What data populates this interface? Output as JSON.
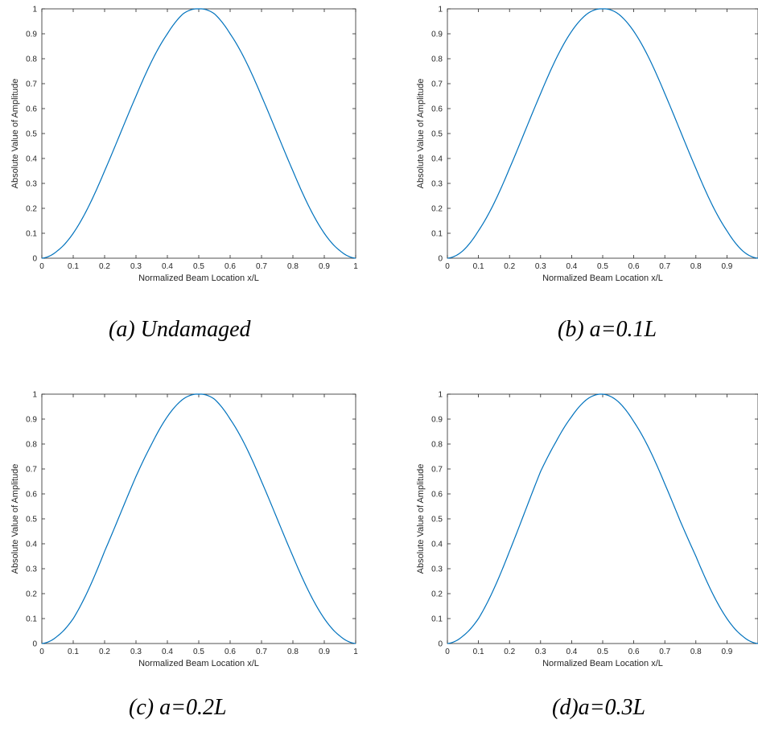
{
  "chart_data": [
    {
      "type": "line",
      "caption": "(a) Undamaged",
      "xlabel": "Normalized Beam Location x/L",
      "ylabel": "Absolute Value of Amplitude",
      "xlim": [
        0,
        1
      ],
      "ylim": [
        0,
        1
      ],
      "xticks": [
        "0",
        "0.1",
        "0.2",
        "0.3",
        "0.4",
        "0.5",
        "0.6",
        "0.7",
        "0.8",
        "0.9",
        "1"
      ],
      "yticks": [
        "0",
        "0.1",
        "0.2",
        "0.3",
        "0.4",
        "0.5",
        "0.6",
        "0.7",
        "0.8",
        "0.9",
        "1"
      ],
      "grid": false,
      "series": [
        {
          "color": "#0072BD",
          "x": [
            0,
            0.05,
            0.1,
            0.15,
            0.2,
            0.25,
            0.3,
            0.35,
            0.4,
            0.45,
            0.5,
            0.55,
            0.6,
            0.65,
            0.7,
            0.75,
            0.8,
            0.85,
            0.9,
            0.95,
            1
          ],
          "y": [
            0,
            0.03,
            0.1,
            0.21,
            0.35,
            0.5,
            0.65,
            0.79,
            0.9,
            0.98,
            1,
            0.98,
            0.9,
            0.79,
            0.65,
            0.5,
            0.35,
            0.21,
            0.1,
            0.03,
            0
          ]
        }
      ]
    },
    {
      "type": "line",
      "caption": "(b) a=0.1L",
      "xlabel": "Normalized Beam Location x/L",
      "ylabel": "Absolute Value of Amplitude",
      "xlim": [
        0,
        1
      ],
      "ylim": [
        0,
        1
      ],
      "xticks": [
        "0",
        "0.1",
        "0.2",
        "0.3",
        "0.4",
        "0.5",
        "0.6",
        "0.7",
        "0.8",
        "0.9"
      ],
      "yticks": [
        "0",
        "0.1",
        "0.2",
        "0.3",
        "0.4",
        "0.5",
        "0.6",
        "0.7",
        "0.8",
        "0.9",
        "1"
      ],
      "grid": false,
      "series": [
        {
          "color": "#0072BD",
          "x": [
            0,
            0.05,
            0.1,
            0.15,
            0.2,
            0.25,
            0.3,
            0.35,
            0.4,
            0.45,
            0.5,
            0.55,
            0.6,
            0.65,
            0.7,
            0.75,
            0.8,
            0.85,
            0.9,
            0.95,
            1
          ],
          "y": [
            0,
            0.03,
            0.11,
            0.22,
            0.36,
            0.51,
            0.66,
            0.8,
            0.91,
            0.98,
            1,
            0.98,
            0.91,
            0.8,
            0.66,
            0.51,
            0.36,
            0.22,
            0.11,
            0.03,
            0
          ]
        }
      ]
    },
    {
      "type": "line",
      "caption": "(c) a=0.2L",
      "xlabel": "Normalized Beam Location x/L",
      "ylabel": "Absolute Value of Amplitude",
      "xlim": [
        0,
        1
      ],
      "ylim": [
        0,
        1
      ],
      "xticks": [
        "0",
        "0.1",
        "0.2",
        "0.3",
        "0.4",
        "0.5",
        "0.6",
        "0.7",
        "0.8",
        "0.9",
        "1"
      ],
      "yticks": [
        "0",
        "0.1",
        "0.2",
        "0.3",
        "0.4",
        "0.5",
        "0.6",
        "0.7",
        "0.8",
        "0.9",
        "1"
      ],
      "grid": false,
      "series": [
        {
          "color": "#0072BD",
          "x": [
            0,
            0.05,
            0.1,
            0.15,
            0.2,
            0.25,
            0.3,
            0.35,
            0.4,
            0.45,
            0.5,
            0.55,
            0.6,
            0.65,
            0.7,
            0.75,
            0.8,
            0.85,
            0.9,
            0.95,
            1
          ],
          "y": [
            0,
            0.03,
            0.1,
            0.22,
            0.37,
            0.52,
            0.67,
            0.8,
            0.91,
            0.98,
            1,
            0.98,
            0.9,
            0.79,
            0.65,
            0.5,
            0.35,
            0.21,
            0.1,
            0.03,
            0
          ]
        }
      ]
    },
    {
      "type": "line",
      "caption": "(d)a=0.3L",
      "xlabel": "Normalized Beam Location x/L",
      "ylabel": "Absolute Value of Amplitude",
      "xlim": [
        0,
        1
      ],
      "ylim": [
        0,
        1
      ],
      "xticks": [
        "0",
        "0.1",
        "0.2",
        "0.3",
        "0.4",
        "0.5",
        "0.6",
        "0.7",
        "0.8",
        "0.9"
      ],
      "yticks": [
        "0",
        "0.1",
        "0.2",
        "0.3",
        "0.4",
        "0.5",
        "0.6",
        "0.7",
        "0.8",
        "0.9",
        "1"
      ],
      "grid": false,
      "series": [
        {
          "color": "#0072BD",
          "x": [
            0,
            0.05,
            0.1,
            0.15,
            0.2,
            0.25,
            0.3,
            0.35,
            0.4,
            0.45,
            0.5,
            0.55,
            0.6,
            0.65,
            0.7,
            0.75,
            0.8,
            0.85,
            0.9,
            0.95,
            1
          ],
          "y": [
            0,
            0.03,
            0.1,
            0.22,
            0.37,
            0.53,
            0.69,
            0.81,
            0.91,
            0.98,
            1,
            0.97,
            0.89,
            0.78,
            0.64,
            0.49,
            0.35,
            0.21,
            0.1,
            0.03,
            0
          ]
        }
      ]
    }
  ]
}
